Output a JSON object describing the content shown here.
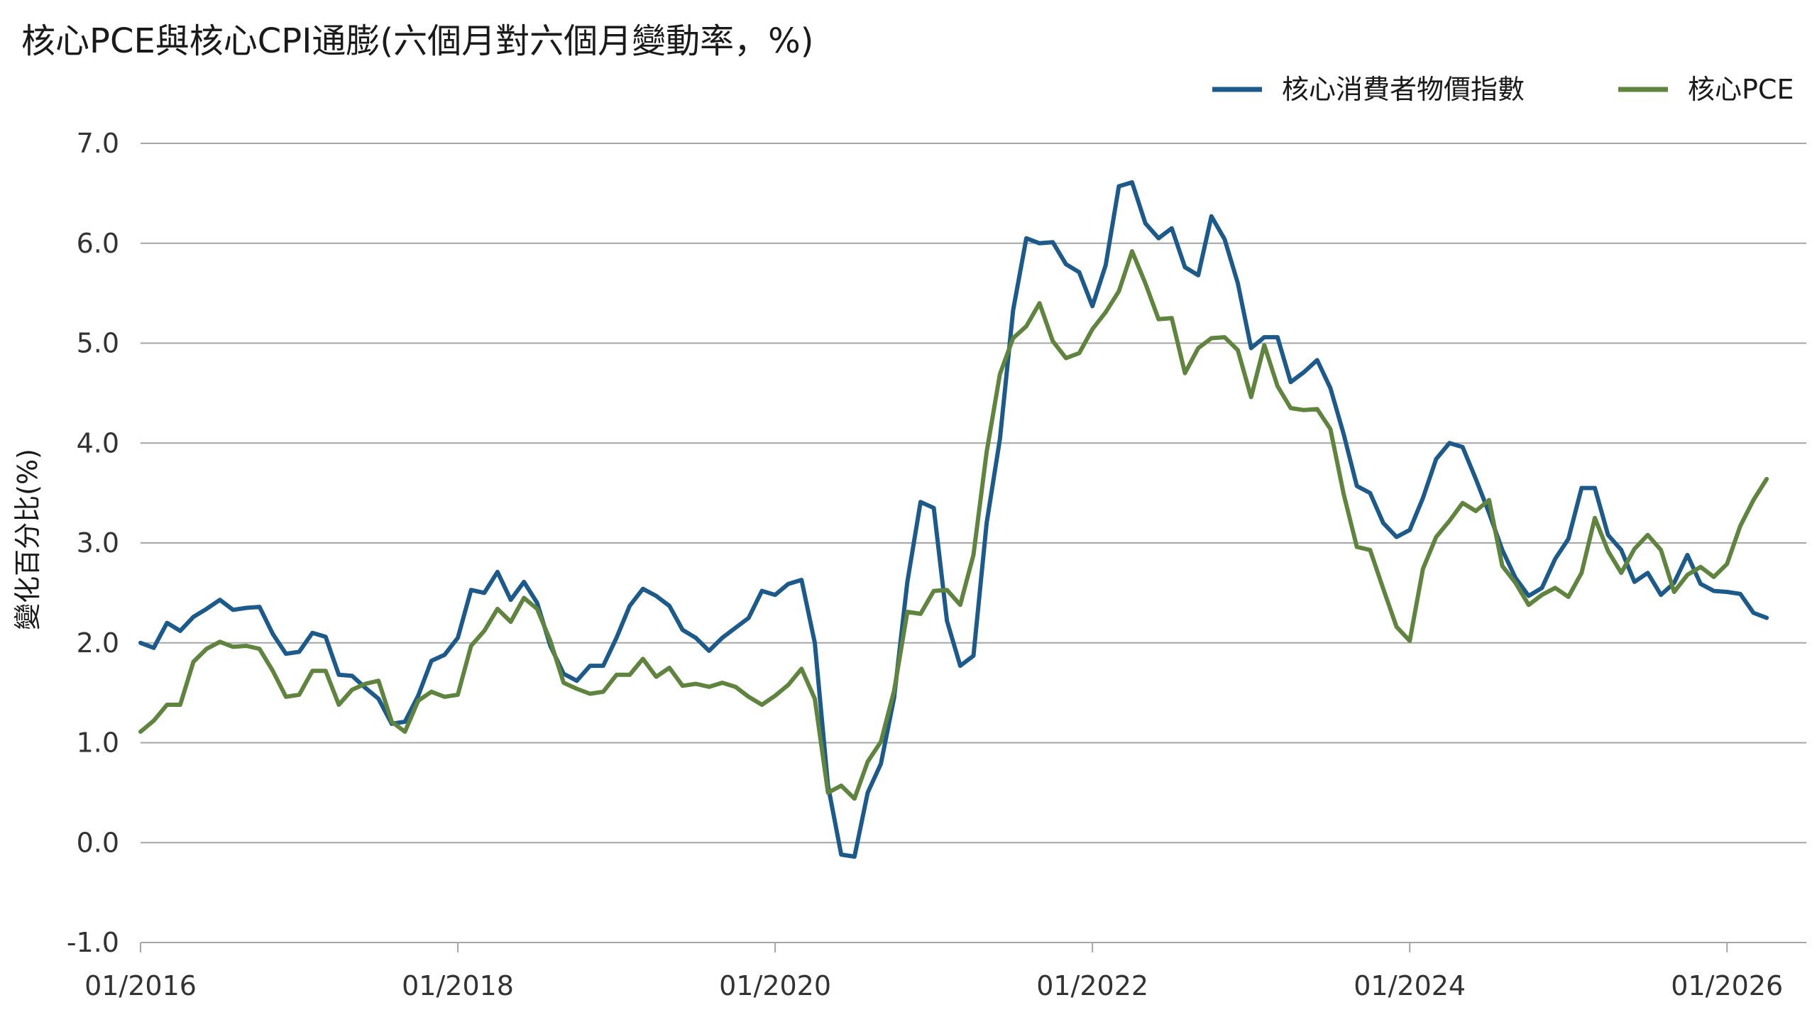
{
  "chart_data": {
    "type": "line",
    "title": "核心PCE與核心CPI通膨(六個月對六個月變動率，%)",
    "ylabel": "變化百分比(%)",
    "xlabel": "",
    "ylim": [
      -1.0,
      7.0
    ],
    "yticks": [
      "-1.0",
      "0.0",
      "1.0",
      "2.0",
      "3.0",
      "4.0",
      "5.0",
      "6.0",
      "7.0"
    ],
    "xlim": [
      "2016-01",
      "2026-07"
    ],
    "xticks": [
      "01/2016",
      "01/2018",
      "01/2020",
      "01/2022",
      "01/2024",
      "01/2026"
    ],
    "grid": "horizontal",
    "legend_position": "top-right",
    "series": [
      {
        "name": "核心消費者物價指數",
        "color": "#1b5a8a",
        "start": "2016-01",
        "values": [
          2.0,
          1.95,
          2.2,
          2.12,
          2.26,
          2.34,
          2.43,
          2.33,
          2.35,
          2.36,
          2.09,
          1.89,
          1.91,
          2.1,
          2.06,
          1.68,
          1.67,
          1.55,
          1.44,
          1.19,
          1.21,
          1.47,
          1.82,
          1.88,
          2.05,
          2.53,
          2.5,
          2.71,
          2.43,
          2.61,
          2.4,
          1.97,
          1.69,
          1.62,
          1.77,
          1.77,
          2.05,
          2.37,
          2.54,
          2.47,
          2.37,
          2.13,
          2.05,
          1.92,
          2.05,
          2.15,
          2.25,
          2.52,
          2.48,
          2.59,
          2.63,
          2.0,
          0.57,
          -0.12,
          -0.14,
          0.5,
          0.79,
          1.45,
          2.61,
          3.41,
          3.35,
          2.22,
          1.77,
          1.87,
          3.2,
          4.04,
          5.33,
          6.05,
          6.0,
          6.01,
          5.79,
          5.71,
          5.37,
          5.78,
          6.57,
          6.61,
          6.2,
          6.05,
          6.15,
          5.76,
          5.68,
          6.27,
          6.04,
          5.6,
          4.95,
          5.06,
          5.06,
          4.61,
          4.71,
          4.83,
          4.55,
          4.09,
          3.57,
          3.5,
          3.2,
          3.06,
          3.13,
          3.45,
          3.84,
          4.0,
          3.96,
          3.64,
          3.3,
          2.93,
          2.65,
          2.47,
          2.55,
          2.84,
          3.04,
          3.55,
          3.55,
          3.08,
          2.93,
          2.61,
          2.7,
          2.48,
          2.6,
          2.88,
          2.59,
          2.52,
          2.51,
          2.49,
          2.3,
          2.25
        ]
      },
      {
        "name": "核心PCE",
        "color": "#5f843d",
        "start": "2016-01",
        "values": [
          1.11,
          1.22,
          1.38,
          1.38,
          1.81,
          1.94,
          2.01,
          1.96,
          1.97,
          1.94,
          1.72,
          1.46,
          1.48,
          1.72,
          1.72,
          1.38,
          1.53,
          1.59,
          1.62,
          1.21,
          1.11,
          1.42,
          1.51,
          1.46,
          1.48,
          1.97,
          2.12,
          2.34,
          2.21,
          2.45,
          2.34,
          2.02,
          1.6,
          1.54,
          1.49,
          1.51,
          1.68,
          1.68,
          1.84,
          1.66,
          1.75,
          1.57,
          1.59,
          1.56,
          1.6,
          1.56,
          1.46,
          1.38,
          1.47,
          1.58,
          1.74,
          1.44,
          0.5,
          0.57,
          0.44,
          0.81,
          1.01,
          1.52,
          2.31,
          2.29,
          2.52,
          2.53,
          2.38,
          2.88,
          3.91,
          4.69,
          5.05,
          5.17,
          5.4,
          5.02,
          4.85,
          4.9,
          5.14,
          5.31,
          5.52,
          5.92,
          5.6,
          5.24,
          5.25,
          4.7,
          4.95,
          5.05,
          5.06,
          4.93,
          4.46,
          4.98,
          4.57,
          4.35,
          4.33,
          4.34,
          4.14,
          3.49,
          2.96,
          2.93,
          2.54,
          2.16,
          2.02,
          2.74,
          3.06,
          3.22,
          3.4,
          3.32,
          3.43,
          2.77,
          2.6,
          2.38,
          2.48,
          2.55,
          2.46,
          2.7,
          3.25,
          2.92,
          2.7,
          2.94,
          3.08,
          2.93,
          2.51,
          2.68,
          2.76,
          2.66,
          2.79,
          3.17,
          3.43,
          3.64
        ]
      }
    ]
  }
}
